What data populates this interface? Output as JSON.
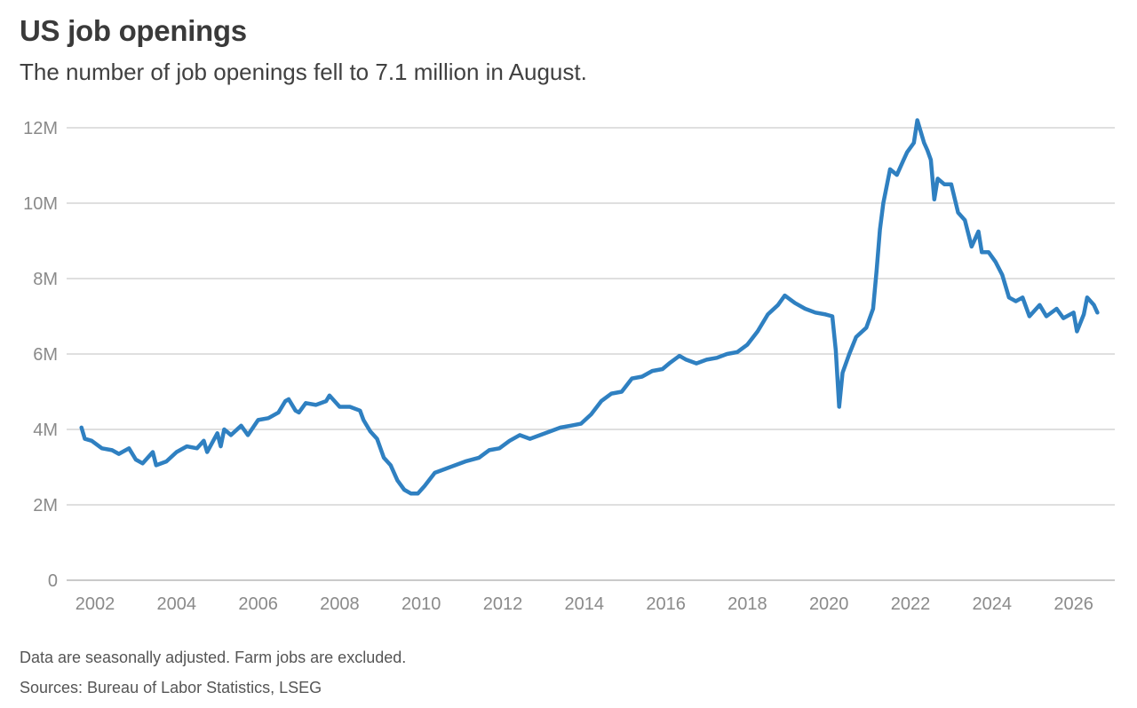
{
  "header": {
    "title": "US job openings",
    "subtitle": "The number of job openings fell to 7.1 million in August."
  },
  "footer": {
    "note": "Data are seasonally adjusted. Farm jobs are excluded.",
    "sources": "Sources: Bureau of Labor Statistics, LSEG"
  },
  "colors": {
    "line": "#2f80c1",
    "grid": "#cccccc",
    "baseline": "#aaaaaa",
    "tick_text": "#8a8a8a"
  },
  "chart_data": {
    "type": "line",
    "title": "US job openings",
    "subtitle": "The number of job openings fell to 7.1 million in August.",
    "xlabel": "",
    "ylabel": "",
    "unit": "million",
    "xlim": [
      "2001-09",
      "2026-08"
    ],
    "ylim": [
      0,
      12
    ],
    "grid": true,
    "y_ticks": [
      0,
      2,
      4,
      6,
      8,
      10,
      12
    ],
    "y_tick_labels": [
      "0",
      "2M",
      "4M",
      "6M",
      "8M",
      "10M",
      "12M"
    ],
    "x_ticks": [
      2002,
      2004,
      2006,
      2008,
      2010,
      2012,
      2014,
      2016,
      2018,
      2020,
      2022,
      2024,
      2026
    ],
    "x_tick_labels": [
      "2002",
      "2004",
      "2006",
      "2008",
      "2010",
      "2012",
      "2014",
      "2016",
      "2018",
      "2020",
      "2022",
      "2024",
      "2026"
    ],
    "series": [
      {
        "points": [
          [
            "2001-09",
            4.05
          ],
          [
            "2001-10",
            3.75
          ],
          [
            "2001-12",
            3.7
          ],
          [
            "2002-03",
            3.5
          ],
          [
            "2002-06",
            3.45
          ],
          [
            "2002-08",
            3.35
          ],
          [
            "2002-11",
            3.5
          ],
          [
            "2003-01",
            3.2
          ],
          [
            "2003-03",
            3.1
          ],
          [
            "2003-06",
            3.4
          ],
          [
            "2003-07",
            3.05
          ],
          [
            "2003-10",
            3.15
          ],
          [
            "2004-01",
            3.4
          ],
          [
            "2004-04",
            3.55
          ],
          [
            "2004-07",
            3.5
          ],
          [
            "2004-09",
            3.7
          ],
          [
            "2004-10",
            3.4
          ],
          [
            "2005-01",
            3.9
          ],
          [
            "2005-02",
            3.55
          ],
          [
            "2005-03",
            4.0
          ],
          [
            "2005-05",
            3.85
          ],
          [
            "2005-08",
            4.1
          ],
          [
            "2005-10",
            3.85
          ],
          [
            "2006-01",
            4.25
          ],
          [
            "2006-04",
            4.3
          ],
          [
            "2006-07",
            4.45
          ],
          [
            "2006-09",
            4.75
          ],
          [
            "2006-10",
            4.8
          ],
          [
            "2006-12",
            4.5
          ],
          [
            "2007-01",
            4.45
          ],
          [
            "2007-03",
            4.7
          ],
          [
            "2007-06",
            4.65
          ],
          [
            "2007-09",
            4.75
          ],
          [
            "2007-10",
            4.9
          ],
          [
            "2008-01",
            4.6
          ],
          [
            "2008-04",
            4.6
          ],
          [
            "2008-07",
            4.5
          ],
          [
            "2008-08",
            4.25
          ],
          [
            "2008-10",
            3.95
          ],
          [
            "2008-12",
            3.75
          ],
          [
            "2009-02",
            3.25
          ],
          [
            "2009-04",
            3.05
          ],
          [
            "2009-06",
            2.65
          ],
          [
            "2009-08",
            2.4
          ],
          [
            "2009-10",
            2.3
          ],
          [
            "2009-12",
            2.3
          ],
          [
            "2010-02",
            2.5
          ],
          [
            "2010-05",
            2.85
          ],
          [
            "2010-08",
            2.95
          ],
          [
            "2010-11",
            3.05
          ],
          [
            "2011-02",
            3.15
          ],
          [
            "2011-06",
            3.25
          ],
          [
            "2011-09",
            3.45
          ],
          [
            "2011-12",
            3.5
          ],
          [
            "2012-03",
            3.7
          ],
          [
            "2012-06",
            3.85
          ],
          [
            "2012-09",
            3.75
          ],
          [
            "2012-12",
            3.85
          ],
          [
            "2013-03",
            3.95
          ],
          [
            "2013-06",
            4.05
          ],
          [
            "2013-09",
            4.1
          ],
          [
            "2013-12",
            4.15
          ],
          [
            "2014-03",
            4.4
          ],
          [
            "2014-06",
            4.75
          ],
          [
            "2014-09",
            4.95
          ],
          [
            "2014-12",
            5.0
          ],
          [
            "2015-03",
            5.35
          ],
          [
            "2015-06",
            5.4
          ],
          [
            "2015-09",
            5.55
          ],
          [
            "2015-12",
            5.6
          ],
          [
            "2016-02",
            5.75
          ],
          [
            "2016-05",
            5.95
          ],
          [
            "2016-07",
            5.85
          ],
          [
            "2016-10",
            5.75
          ],
          [
            "2017-01",
            5.85
          ],
          [
            "2017-04",
            5.9
          ],
          [
            "2017-07",
            6.0
          ],
          [
            "2017-10",
            6.05
          ],
          [
            "2018-01",
            6.25
          ],
          [
            "2018-04",
            6.6
          ],
          [
            "2018-07",
            7.05
          ],
          [
            "2018-10",
            7.3
          ],
          [
            "2018-12",
            7.55
          ],
          [
            "2019-03",
            7.35
          ],
          [
            "2019-06",
            7.2
          ],
          [
            "2019-09",
            7.1
          ],
          [
            "2019-12",
            7.05
          ],
          [
            "2020-02",
            7.0
          ],
          [
            "2020-03",
            6.1
          ],
          [
            "2020-04",
            4.6
          ],
          [
            "2020-05",
            5.5
          ],
          [
            "2020-07",
            6.0
          ],
          [
            "2020-09",
            6.45
          ],
          [
            "2020-12",
            6.7
          ],
          [
            "2021-02",
            7.2
          ],
          [
            "2021-03",
            8.2
          ],
          [
            "2021-04",
            9.3
          ],
          [
            "2021-05",
            10.0
          ],
          [
            "2021-07",
            10.9
          ],
          [
            "2021-09",
            10.75
          ],
          [
            "2021-11",
            11.15
          ],
          [
            "2021-12",
            11.35
          ],
          [
            "2022-02",
            11.6
          ],
          [
            "2022-03",
            12.2
          ],
          [
            "2022-05",
            11.6
          ],
          [
            "2022-06",
            11.4
          ],
          [
            "2022-07",
            11.15
          ],
          [
            "2022-08",
            10.1
          ],
          [
            "2022-09",
            10.65
          ],
          [
            "2022-11",
            10.5
          ],
          [
            "2023-01",
            10.5
          ],
          [
            "2023-03",
            9.75
          ],
          [
            "2023-05",
            9.55
          ],
          [
            "2023-07",
            8.85
          ],
          [
            "2023-09",
            9.25
          ],
          [
            "2023-10",
            8.7
          ],
          [
            "2023-12",
            8.7
          ],
          [
            "2024-02",
            8.45
          ],
          [
            "2024-04",
            8.1
          ],
          [
            "2024-06",
            7.5
          ],
          [
            "2024-08",
            7.4
          ],
          [
            "2024-10",
            7.5
          ],
          [
            "2024-12",
            7.0
          ],
          [
            "2025-03",
            7.3
          ],
          [
            "2025-05",
            7.0
          ],
          [
            "2025-08",
            7.2
          ],
          [
            "2025-10",
            6.95
          ],
          [
            "2026-01",
            7.1
          ],
          [
            "2026-02",
            6.6
          ],
          [
            "2026-04",
            7.05
          ],
          [
            "2026-05",
            7.5
          ],
          [
            "2026-07",
            7.3
          ],
          [
            "2026-08",
            7.1
          ]
        ]
      }
    ]
  }
}
